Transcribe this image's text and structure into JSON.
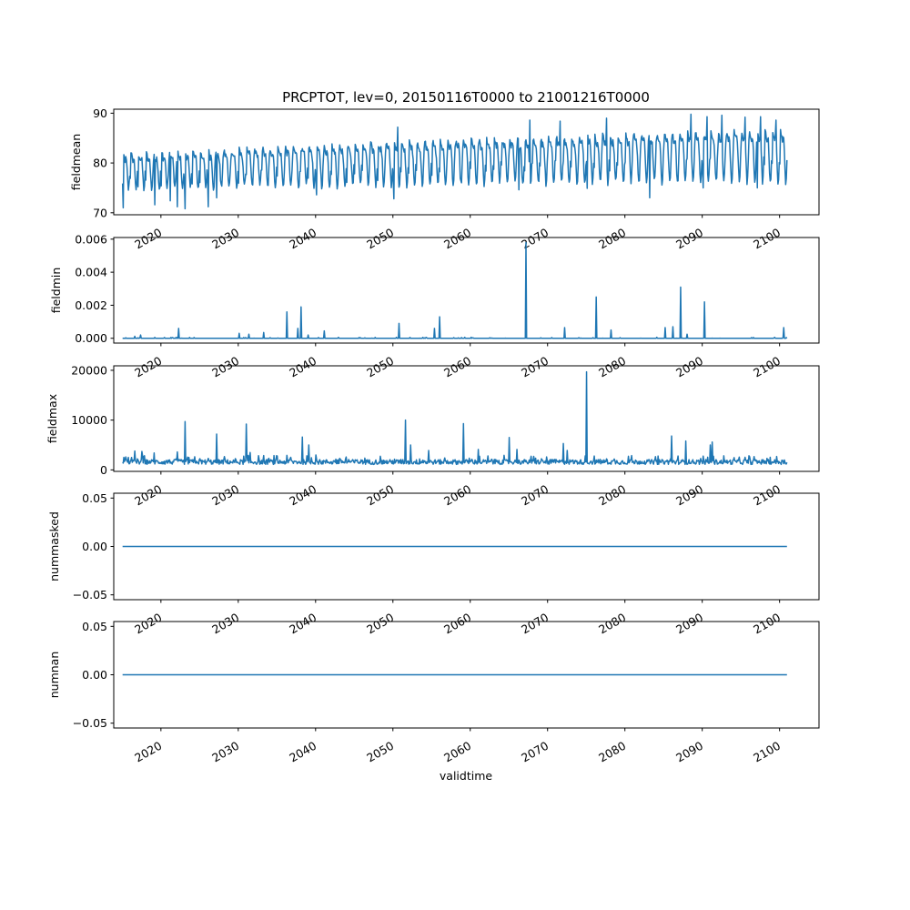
{
  "title": "PRCPTOT, lev=0, 20150116T0000 to 21001216T0000",
  "xlabel": "validtime",
  "colors": {
    "series": "#1f77b4"
  },
  "chart_data": [
    {
      "type": "line",
      "ylabel": "fieldmean",
      "xlim": [
        2013.9,
        2105.1
      ],
      "ylim": [
        69.6,
        90.8
      ],
      "yticks": [
        70,
        80,
        90
      ],
      "ytick_labels": [
        "70",
        "80",
        "90"
      ],
      "xticks": [
        2020,
        2030,
        2040,
        2050,
        2060,
        2070,
        2080,
        2090,
        2100
      ],
      "xtick_labels": [
        "2020",
        "2030",
        "2040",
        "2050",
        "2060",
        "2070",
        "2080",
        "2090",
        "2100"
      ],
      "x_start": 2015.04,
      "x_end": 2100.96,
      "pattern": "seasonal",
      "trend": [
        [
          2015,
          79.0
        ],
        [
          2040,
          80.3
        ],
        [
          2060,
          81.2
        ],
        [
          2080,
          82.0
        ],
        [
          2100,
          82.6
        ]
      ],
      "amplitude": [
        [
          2015,
          3.0
        ],
        [
          2060,
          3.8
        ],
        [
          2100,
          4.4
        ]
      ],
      "spikes": [
        [
          2015.1,
          71.0
        ],
        [
          2019.2,
          71.6
        ],
        [
          2021.2,
          72.4
        ],
        [
          2022.1,
          71.2
        ],
        [
          2023.1,
          70.8
        ],
        [
          2026.1,
          71.2
        ],
        [
          2027.2,
          73.0
        ],
        [
          2040.1,
          73.6
        ],
        [
          2050.1,
          72.8
        ],
        [
          2066.3,
          74.6
        ],
        [
          2075.1,
          74.9
        ],
        [
          2083.2,
          73.0
        ],
        [
          2090.1,
          75.0
        ],
        [
          2097.1,
          75.0
        ]
      ],
      "peaks": [
        [
          2050.6,
          87.2
        ],
        [
          2067.7,
          88.6
        ],
        [
          2071.6,
          88.4
        ],
        [
          2077.6,
          89.0
        ],
        [
          2088.5,
          89.8
        ],
        [
          2090.6,
          89.3
        ],
        [
          2092.5,
          89.6
        ],
        [
          2095.5,
          89.2
        ],
        [
          2097.5,
          89.3
        ],
        [
          2099.5,
          88.6
        ]
      ]
    },
    {
      "type": "line",
      "ylabel": "fieldmin",
      "xlim": [
        2013.9,
        2105.1
      ],
      "ylim": [
        -0.00029,
        0.0061
      ],
      "yticks": [
        0.0,
        0.002,
        0.004,
        0.006
      ],
      "ytick_labels": [
        "0.000",
        "0.002",
        "0.004",
        "0.006"
      ],
      "xticks": [
        2020,
        2030,
        2040,
        2050,
        2060,
        2070,
        2080,
        2090,
        2100
      ],
      "xtick_labels": [
        "2020",
        "2030",
        "2040",
        "2050",
        "2060",
        "2070",
        "2080",
        "2090",
        "2100"
      ],
      "x_start": 2015.04,
      "x_end": 2100.96,
      "pattern": "baseline-spikes",
      "baseline": 0,
      "spikes": [
        [
          2016.6,
          0.00012
        ],
        [
          2017.4,
          0.0002
        ],
        [
          2022.3,
          0.0006
        ],
        [
          2030.1,
          0.0003
        ],
        [
          2031.4,
          0.00025
        ],
        [
          2033.3,
          0.00035
        ],
        [
          2036.3,
          0.0016
        ],
        [
          2037.7,
          0.0006
        ],
        [
          2038.1,
          0.0019
        ],
        [
          2039.0,
          0.0002
        ],
        [
          2041.1,
          0.00045
        ],
        [
          2050.8,
          0.0009
        ],
        [
          2055.4,
          0.0006
        ],
        [
          2056.0,
          0.0013
        ],
        [
          2067.2,
          0.0058
        ],
        [
          2072.2,
          0.00065
        ],
        [
          2076.3,
          0.0025
        ],
        [
          2078.2,
          0.0005
        ],
        [
          2085.2,
          0.00065
        ],
        [
          2086.2,
          0.0007
        ],
        [
          2087.2,
          0.0031
        ],
        [
          2088.0,
          0.00025
        ],
        [
          2090.3,
          0.0022
        ],
        [
          2100.5,
          0.00065
        ]
      ]
    },
    {
      "type": "line",
      "ylabel": "fieldmax",
      "xlim": [
        2013.9,
        2105.1
      ],
      "ylim": [
        -300,
        20900
      ],
      "yticks": [
        0,
        10000,
        20000
      ],
      "ytick_labels": [
        "0",
        "10000",
        "20000"
      ],
      "xticks": [
        2020,
        2030,
        2040,
        2050,
        2060,
        2070,
        2080,
        2090,
        2100
      ],
      "xtick_labels": [
        "2020",
        "2030",
        "2040",
        "2050",
        "2060",
        "2070",
        "2080",
        "2090",
        "2100"
      ],
      "x_start": 2015.04,
      "x_end": 2100.96,
      "pattern": "noise-spikes",
      "baseline": 1100,
      "noise": 1400,
      "spikes": [
        [
          2015.8,
          2500
        ],
        [
          2016.6,
          3800
        ],
        [
          2017.5,
          3700
        ],
        [
          2019.1,
          3400
        ],
        [
          2022.1,
          3600
        ],
        [
          2023.1,
          9700
        ],
        [
          2027.2,
          7200
        ],
        [
          2031.0,
          9200
        ],
        [
          2031.5,
          3500
        ],
        [
          2035.0,
          2800
        ],
        [
          2038.3,
          6600
        ],
        [
          2039.1,
          5000
        ],
        [
          2040.0,
          3000
        ],
        [
          2051.6,
          10000
        ],
        [
          2052.3,
          5000
        ],
        [
          2054.6,
          3900
        ],
        [
          2059.1,
          9300
        ],
        [
          2061.0,
          4100
        ],
        [
          2065.0,
          6500
        ],
        [
          2066.0,
          4100
        ],
        [
          2072.0,
          5300
        ],
        [
          2072.5,
          3900
        ],
        [
          2075.0,
          19700
        ],
        [
          2086.0,
          6800
        ],
        [
          2087.9,
          5800
        ],
        [
          2091.0,
          5000
        ],
        [
          2091.3,
          5600
        ]
      ]
    },
    {
      "type": "line",
      "ylabel": "nummasked",
      "xlim": [
        2013.9,
        2105.1
      ],
      "ylim": [
        -0.055,
        0.055
      ],
      "yticks": [
        -0.05,
        0.0,
        0.05
      ],
      "ytick_labels": [
        "−0.05",
        "0.00",
        "0.05"
      ],
      "xticks": [
        2020,
        2030,
        2040,
        2050,
        2060,
        2070,
        2080,
        2090,
        2100
      ],
      "xtick_labels": [
        "2020",
        "2030",
        "2040",
        "2050",
        "2060",
        "2070",
        "2080",
        "2090",
        "2100"
      ],
      "x_start": 2015.04,
      "x_end": 2100.96,
      "pattern": "constant",
      "value": 0
    },
    {
      "type": "line",
      "ylabel": "numnan",
      "xlim": [
        2013.9,
        2105.1
      ],
      "ylim": [
        -0.055,
        0.055
      ],
      "yticks": [
        -0.05,
        0.0,
        0.05
      ],
      "ytick_labels": [
        "−0.05",
        "0.00",
        "0.05"
      ],
      "xticks": [
        2020,
        2030,
        2040,
        2050,
        2060,
        2070,
        2080,
        2090,
        2100
      ],
      "xtick_labels": [
        "2020",
        "2030",
        "2040",
        "2050",
        "2060",
        "2070",
        "2080",
        "2090",
        "2100"
      ],
      "x_start": 2015.04,
      "x_end": 2100.96,
      "pattern": "constant",
      "value": 0
    }
  ]
}
